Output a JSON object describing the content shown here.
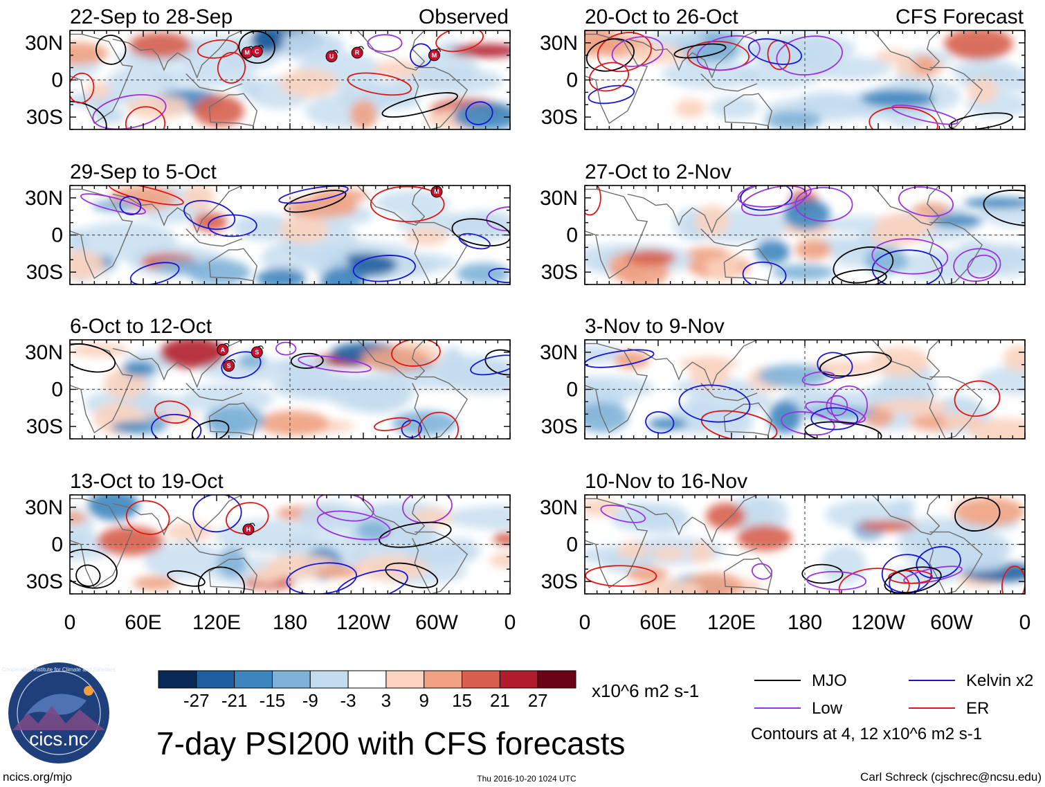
{
  "chart_data": {
    "type": "heatmap",
    "title": "7-day PSI200 with CFS forecasts",
    "units": "x10^6 m2 s-1",
    "column_labels": {
      "observed": "Observed",
      "forecast": "CFS Forecast"
    },
    "xlabels": [
      "0",
      "60E",
      "120E",
      "180",
      "120W",
      "60W",
      "0"
    ],
    "ylabels": [
      "30N",
      "0",
      "30S"
    ],
    "xlim": [
      0,
      360
    ],
    "ylim": [
      -40,
      40
    ],
    "observed_periods": [
      "22-Sep to 28-Sep",
      "29-Sep to 5-Oct",
      "6-Oct to 12-Oct",
      "13-Oct to 19-Oct"
    ],
    "forecast_periods": [
      "20-Oct to 26-Oct",
      "27-Oct to 2-Nov",
      "3-Nov to 9-Nov",
      "10-Nov to 16-Nov"
    ],
    "colorbar": {
      "levels": [
        "-27",
        "-21",
        "-15",
        "-9",
        "-3",
        "3",
        "9",
        "15",
        "21",
        "27"
      ],
      "colors": [
        "#0a2a55",
        "#1f5f9f",
        "#3d86bf",
        "#7fb2d8",
        "#c4dcef",
        "#ffffff",
        "#fbd3bf",
        "#f0a283",
        "#d8604e",
        "#b11d2c",
        "#6b0317"
      ]
    },
    "legend": {
      "items": [
        {
          "label": "MJO",
          "color": "#000000"
        },
        {
          "label": "Kelvin x2",
          "color": "#1515d6"
        },
        {
          "label": "Low",
          "color": "#9a32e0"
        },
        {
          "label": "ER",
          "color": "#e01515"
        }
      ],
      "note": "Contours at 4, 12 x10^6 m2 s-1"
    },
    "storm_markers": [
      {
        "panel": 0,
        "lon": 145,
        "lat": 22,
        "letter": "M"
      },
      {
        "panel": 0,
        "lon": 153,
        "lat": 23,
        "letter": "C"
      },
      {
        "panel": 0,
        "lon": 214,
        "lat": 19,
        "letter": "U"
      },
      {
        "panel": 0,
        "lon": 235,
        "lat": 22,
        "letter": "R"
      },
      {
        "panel": 0,
        "lon": 298,
        "lat": 20,
        "letter": "M"
      },
      {
        "panel": 1,
        "lon": 300,
        "lat": 35,
        "letter": "M"
      },
      {
        "panel": 2,
        "lon": 125,
        "lat": 32,
        "letter": "A"
      },
      {
        "panel": 2,
        "lon": 130,
        "lat": 19,
        "letter": "S"
      },
      {
        "panel": 2,
        "lon": 153,
        "lat": 30,
        "letter": "S"
      },
      {
        "panel": 3,
        "lon": 146,
        "lat": 12,
        "letter": "H"
      }
    ]
  },
  "footer": {
    "logo_text": "cics.nc",
    "logo_ring": "Cooperative Institute for Climate and Satellites",
    "url": "ncics.org/mjo",
    "timestamp": "Thu 2016-10-20 1024 UTC",
    "author": "Carl Schreck (cjschrec@ncsu.edu)"
  }
}
